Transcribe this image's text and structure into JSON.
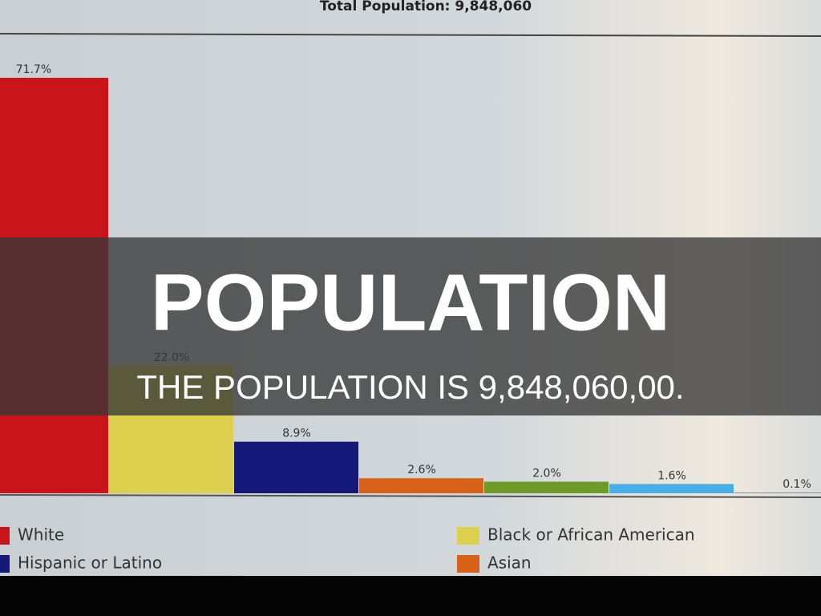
{
  "chart_data": {
    "type": "bar",
    "title": "Total Population: 9,848,060",
    "categories": [
      "White",
      "Black or African American",
      "Hispanic or Latino",
      "Asian",
      null,
      null,
      null
    ],
    "values": [
      71.7,
      22.0,
      8.9,
      2.6,
      2.0,
      1.6,
      0.1
    ],
    "value_labels": [
      "71.7%",
      "22.0%",
      "8.9%",
      "2.6%",
      "2.0%",
      "1.6%",
      "0.1%"
    ],
    "colors": [
      "#c8141b",
      "#dcd04e",
      "#15197a",
      "#d8621a",
      "#6e9a2c",
      "#4aaee6",
      "#8a8f96"
    ]
  },
  "overlay": {
    "title": "POPULATION",
    "subtitle": "THE POPULATION IS 9,848,060,00."
  }
}
